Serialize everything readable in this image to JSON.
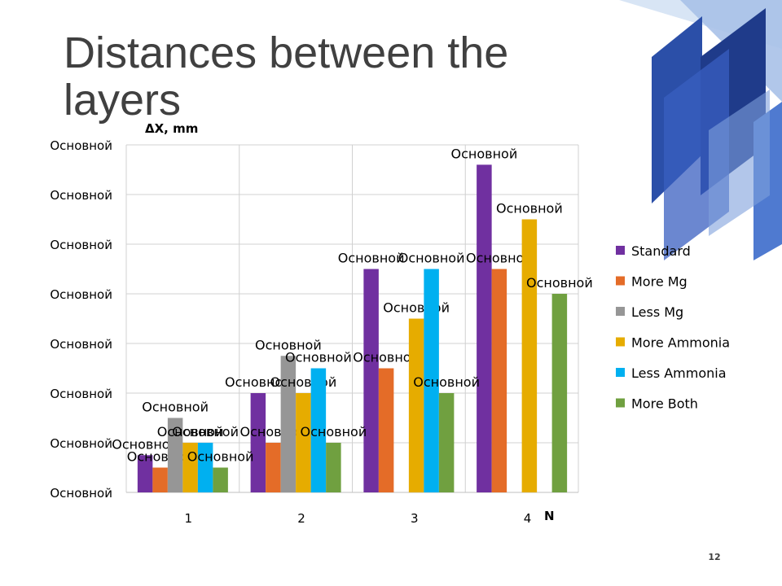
{
  "slide": {
    "title": "Distances between the layers",
    "page_number": "12"
  },
  "decoration": {
    "colors": [
      "#1f3b8a",
      "#2b4fa8",
      "#3a5fc0",
      "#4f7ad0",
      "#7fa0dc",
      "#a9c1e8",
      "#d4e2f4"
    ]
  },
  "chart_data": {
    "type": "bar",
    "xlabel": "N",
    "ylabel": "ΔX, mm",
    "categories": [
      "1",
      "2",
      "3",
      "4"
    ],
    "ytick_labels": [
      "Основной",
      "Основной",
      "Основной",
      "Основной",
      "Основной",
      "Основной",
      "Основной",
      "Основной"
    ],
    "ylim": [
      0,
      7
    ],
    "grid": true,
    "legend": "right",
    "series": [
      {
        "name": "Standard",
        "color": "#7030a0",
        "values": [
          0.75,
          2.0,
          4.5,
          6.6
        ],
        "labels": [
          "Основной",
          "Основной",
          "Основной",
          "Основной"
        ]
      },
      {
        "name": "More Mg",
        "color": "#e46c28",
        "values": [
          0.5,
          1.0,
          2.5,
          4.5
        ],
        "labels": [
          "Основной",
          "Основной",
          "Основной",
          "Основной"
        ]
      },
      {
        "name": "Less Mg",
        "color": "#969696",
        "values": [
          1.5,
          2.75,
          null,
          null
        ],
        "labels": [
          "Основной",
          "Основной",
          "",
          ""
        ]
      },
      {
        "name": "More Ammonia",
        "color": "#e6ac00",
        "values": [
          1.0,
          2.0,
          3.5,
          5.5
        ],
        "labels": [
          "Основной",
          "Основной",
          "Основной",
          "Основной"
        ]
      },
      {
        "name": "Less Ammonia",
        "color": "#00b0f0",
        "values": [
          1.0,
          2.5,
          4.5,
          null
        ],
        "labels": [
          "Основной",
          "Основной",
          "Основной",
          ""
        ]
      },
      {
        "name": "More Both",
        "color": "#70a040",
        "values": [
          0.5,
          1.0,
          2.0,
          4.0
        ],
        "labels": [
          "Основной",
          "Основной",
          "Основной",
          "Основной"
        ]
      }
    ]
  }
}
